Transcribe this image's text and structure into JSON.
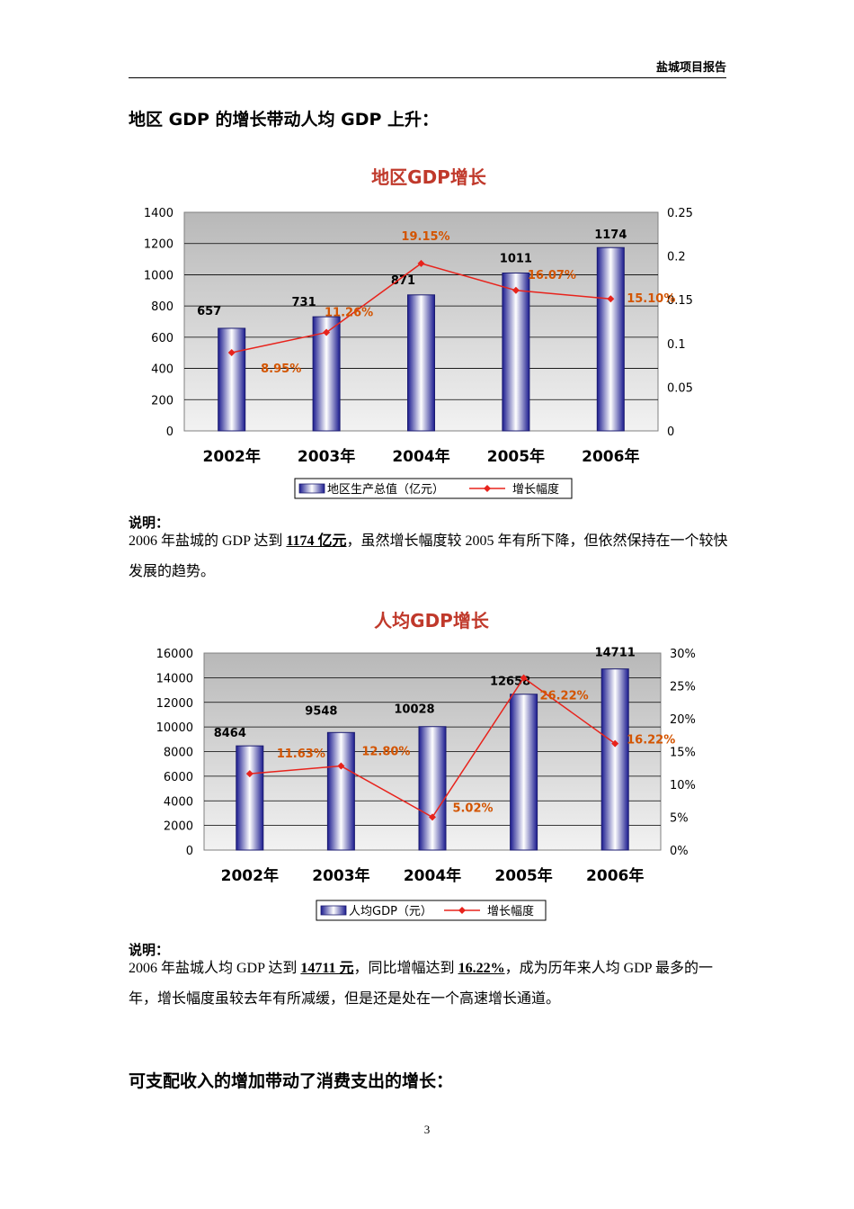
{
  "header": {
    "title": "盐城项目报告"
  },
  "section1": {
    "heading": "地区 GDP 的增长带动人均 GDP 上升："
  },
  "note1": {
    "label": "说明：",
    "pre": "2006 年盐城的 GDP 达到 ",
    "highlight": "1174 亿元",
    "post": "，虽然增长幅度较 2005 年有所下降，但依然保持在一个较快发展的趋势。"
  },
  "note2": {
    "label": "说明：",
    "pre": "2006 年盐城人均 GDP 达到 ",
    "highlight1": "14711 元",
    "mid": "，同比增幅达到 ",
    "highlight2": "16.22%",
    "post": "，成为历年来人均 GDP 最多的一年，增长幅度虽较去年有所减缓，但是还是处在一个高速增长通道。"
  },
  "section2": {
    "heading": "可支配收入的增加带动了消费支出的增长："
  },
  "page_number": "3",
  "colors": {
    "title": "#c0392b",
    "growth_line": "#e8231c",
    "growth_label": "#d35400",
    "bar_dark": "#1b1b8f",
    "plot_bg_top": "#b8b8b8",
    "plot_bg_bottom": "#f2f2f2"
  },
  "chart_data": [
    {
      "type": "bar",
      "title": "地区GDP增长",
      "categories": [
        "2002年",
        "2003年",
        "2004年",
        "2005年",
        "2006年"
      ],
      "series": [
        {
          "name": "地区生产总值（亿元）",
          "type": "bar",
          "axis": "left",
          "values": [
            657,
            731,
            871,
            1011,
            1174
          ],
          "labels": [
            "657",
            "731",
            "871",
            "1011",
            "1174"
          ]
        },
        {
          "name": "增长幅度",
          "type": "line",
          "axis": "right",
          "values": [
            0.0895,
            0.1126,
            0.1915,
            0.1607,
            0.151
          ],
          "labels": [
            "8.95%",
            "11.26%",
            "19.15%",
            "16.07%",
            "15.10%"
          ]
        }
      ],
      "ylim": [
        0,
        1400
      ],
      "yticks": [
        "0",
        "200",
        "400",
        "600",
        "800",
        "1000",
        "1200",
        "1400"
      ],
      "y2lim": [
        0,
        0.25
      ],
      "y2ticks": [
        "0",
        "0.05",
        "0.1",
        "0.15",
        "0.2",
        "0.25"
      ],
      "grid": true,
      "legend": "bottom"
    },
    {
      "type": "bar",
      "title": "人均GDP增长",
      "categories": [
        "2002年",
        "2003年",
        "2004年",
        "2005年",
        "2006年"
      ],
      "series": [
        {
          "name": "人均GDP（元）",
          "type": "bar",
          "axis": "left",
          "values": [
            8464,
            9548,
            10028,
            12658,
            14711
          ],
          "labels": [
            "8464",
            "9548",
            "10028",
            "12658",
            "14711"
          ]
        },
        {
          "name": "增长幅度",
          "type": "line",
          "axis": "right",
          "values": [
            0.1163,
            0.128,
            0.0502,
            0.2622,
            0.1622
          ],
          "labels": [
            "11.63%",
            "12.80%",
            "5.02%",
            "26.22%",
            "16.22%"
          ]
        }
      ],
      "ylim": [
        0,
        16000
      ],
      "yticks": [
        "0",
        "2000",
        "4000",
        "6000",
        "8000",
        "10000",
        "12000",
        "14000",
        "16000"
      ],
      "y2lim": [
        0,
        0.3
      ],
      "y2ticks": [
        "0%",
        "5%",
        "10%",
        "15%",
        "20%",
        "25%",
        "30%"
      ],
      "grid": true,
      "legend": "bottom"
    }
  ]
}
